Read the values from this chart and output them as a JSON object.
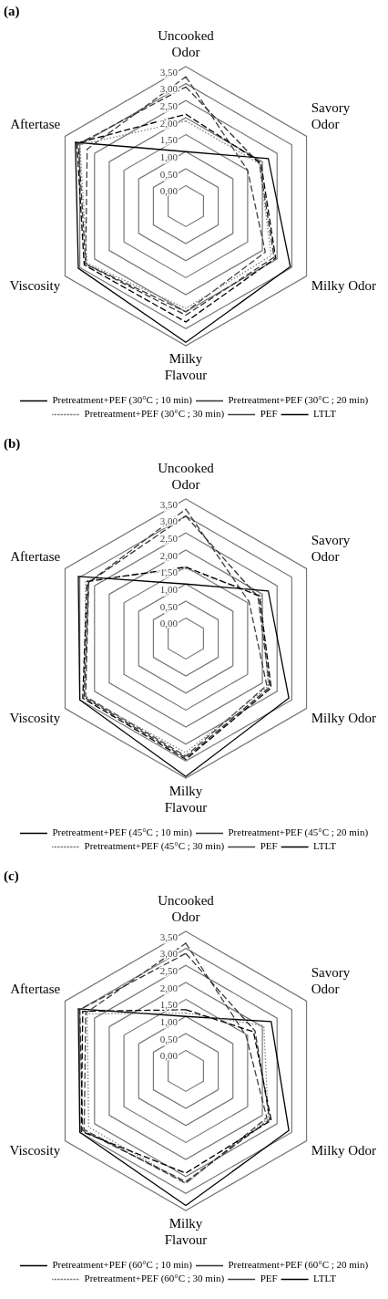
{
  "chart_data": [
    {
      "type": "radar",
      "title": "(a)",
      "categories": [
        "Uncooked Odor",
        "Savory Odor",
        "Milky Odor",
        "Milky Flavour",
        "Viscosity",
        "Aftertase"
      ],
      "series": [
        {
          "name": "Pretreatment+PEF (30°C ; 10 min)",
          "color": "#000000",
          "line_style": "dashed",
          "values": [
            2.1,
            1.95,
            2.45,
            2.8,
            2.85,
            3.1
          ]
        },
        {
          "name": "Pretreatment+PEF (30°C ; 20 min)",
          "color": "#333333",
          "line_style": "dashed",
          "values": [
            2.9,
            1.9,
            2.4,
            2.6,
            2.8,
            3.05
          ]
        },
        {
          "name": "Pretreatment+PEF (30°C ; 30 min)",
          "color": "#808080",
          "line_style": "dotted",
          "values": [
            1.9,
            1.9,
            2.3,
            2.4,
            2.75,
            3.0
          ]
        },
        {
          "name": "PEF",
          "color": "#404040",
          "line_style": "dashed",
          "values": [
            3.2,
            1.5,
            2.1,
            2.5,
            2.8,
            2.75
          ]
        },
        {
          "name": "LTLT",
          "color": "#000000",
          "line_style": "solid",
          "values": [
            1.0,
            2.2,
            2.95,
            3.4,
            3.05,
            3.15
          ]
        }
      ],
      "ylim": [
        -0.6,
        3.5
      ],
      "yticks": [
        {
          "value": 0,
          "label": "0,00"
        },
        {
          "value": 0.5,
          "label": "0,50"
        },
        {
          "value": 1,
          "label": "1,00"
        },
        {
          "value": 1.5,
          "label": "1,50"
        },
        {
          "value": 2,
          "label": "2,00"
        },
        {
          "value": 2.5,
          "label": "2,50"
        },
        {
          "value": 3,
          "label": "3,00"
        },
        {
          "value": 3.5,
          "label": "3,50"
        }
      ],
      "grid": true,
      "legend": "bottom",
      "marker": "none"
    },
    {
      "type": "radar",
      "title": "(b)",
      "categories": [
        "Uncooked Odor",
        "Savory Odor",
        "Milky Odor",
        "Milky Flavour",
        "Viscosity",
        "Aftertase"
      ],
      "series": [
        {
          "name": "Pretreatment+PEF (45°C ; 10 min)",
          "color": "#000000",
          "line_style": "dashed",
          "values": [
            1.5,
            1.9,
            2.3,
            2.95,
            2.9,
            2.75
          ]
        },
        {
          "name": "Pretreatment+PEF (45°C ; 20 min)",
          "color": "#333333",
          "line_style": "dashed",
          "values": [
            3.0,
            1.85,
            2.25,
            2.9,
            2.85,
            2.7
          ]
        },
        {
          "name": "Pretreatment+PEF (45°C ; 30 min)",
          "color": "#808080",
          "line_style": "dotted",
          "values": [
            1.45,
            1.95,
            2.2,
            2.75,
            2.85,
            2.8
          ]
        },
        {
          "name": "PEF",
          "color": "#404040",
          "line_style": "dashed",
          "values": [
            3.2,
            1.55,
            2.15,
            2.85,
            2.8,
            2.7
          ]
        },
        {
          "name": "LTLT",
          "color": "#000000",
          "line_style": "solid",
          "values": [
            1.0,
            2.2,
            2.9,
            3.45,
            3.0,
            3.05
          ]
        }
      ],
      "ylim": [
        -0.6,
        3.5
      ],
      "yticks": [
        {
          "value": 0,
          "label": "0,00"
        },
        {
          "value": 0.5,
          "label": "0,50"
        },
        {
          "value": 1,
          "label": "1,00"
        },
        {
          "value": 1.5,
          "label": "1,50"
        },
        {
          "value": 2,
          "label": "2,00"
        },
        {
          "value": 2.5,
          "label": "2,50"
        },
        {
          "value": 3,
          "label": "3,00"
        },
        {
          "value": 3.5,
          "label": "3,50"
        }
      ],
      "grid": true,
      "legend": "bottom",
      "marker": "none"
    },
    {
      "type": "radar",
      "title": "(c)",
      "categories": [
        "Uncooked Odor",
        "Savory Odor",
        "Milky Odor",
        "Milky Flavour",
        "Viscosity",
        "Aftertase"
      ],
      "series": [
        {
          "name": "Pretreatment+PEF (60°C ; 10 min)",
          "color": "#000000",
          "line_style": "dashed",
          "values": [
            1.2,
            1.7,
            2.3,
            2.4,
            2.95,
            2.9
          ]
        },
        {
          "name": "Pretreatment+PEF (60°C ; 20 min)",
          "color": "#333333",
          "line_style": "dashed",
          "values": [
            2.85,
            1.75,
            2.25,
            2.65,
            2.9,
            3.0
          ]
        },
        {
          "name": "Pretreatment+PEF (60°C ; 30 min)",
          "color": "#808080",
          "line_style": "dotted",
          "values": [
            1.1,
            2.05,
            2.2,
            2.7,
            2.7,
            2.75
          ]
        },
        {
          "name": "PEF",
          "color": "#404040",
          "line_style": "dashed",
          "values": [
            3.15,
            1.45,
            2.15,
            2.7,
            2.85,
            2.8
          ]
        },
        {
          "name": "LTLT",
          "color": "#000000",
          "line_style": "solid",
          "values": [
            1.0,
            2.3,
            2.9,
            3.35,
            3.0,
            3.05
          ]
        }
      ],
      "ylim": [
        -0.6,
        3.5
      ],
      "yticks": [
        {
          "value": 0,
          "label": "0,00"
        },
        {
          "value": 0.5,
          "label": "0,50"
        },
        {
          "value": 1,
          "label": "1,00"
        },
        {
          "value": 1.5,
          "label": "1,50"
        },
        {
          "value": 2,
          "label": "2,00"
        },
        {
          "value": 2.5,
          "label": "2,50"
        },
        {
          "value": 3,
          "label": "3,00"
        },
        {
          "value": 3.5,
          "label": "3,50"
        }
      ],
      "grid": true,
      "legend": "bottom",
      "marker": "none"
    }
  ]
}
